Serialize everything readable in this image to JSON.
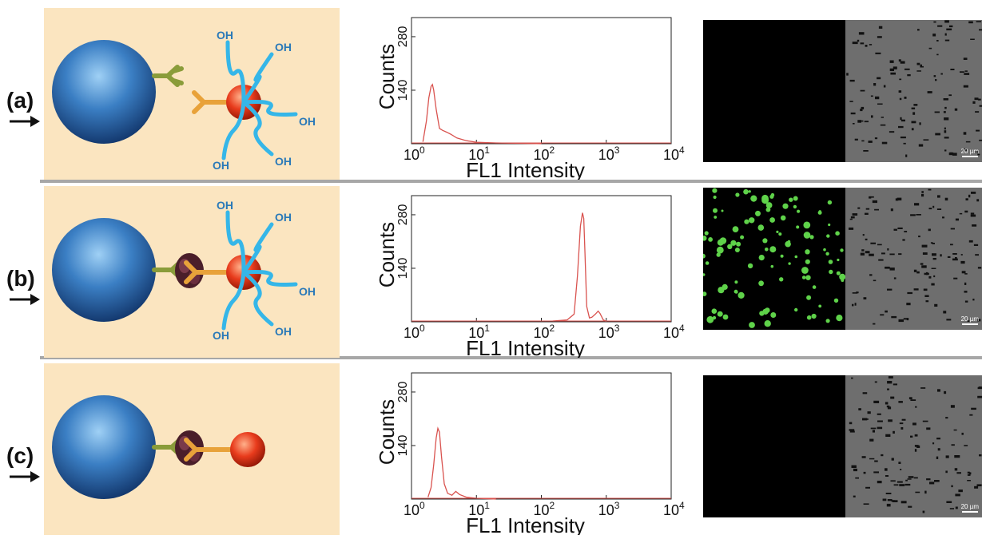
{
  "panels": [
    {
      "label": "(a)",
      "fluorescent": false,
      "complex": false,
      "peg": true
    },
    {
      "label": "(b)",
      "fluorescent": true,
      "complex": true,
      "peg": true
    },
    {
      "label": "(c)",
      "fluorescent": false,
      "complex": true,
      "peg": false
    }
  ],
  "oh_label": "OH",
  "scale_bar": "20 µm",
  "chart_data": [
    {
      "type": "line",
      "panel": "(a)",
      "xlabel": "FL1 Intensity",
      "ylabel": "Counts",
      "xscale": "log",
      "xlim": [
        1,
        10000
      ],
      "ylim": [
        0,
        330
      ],
      "x_ticks": [
        "10^0",
        "10^1",
        "10^2",
        "10^3",
        "10^4"
      ],
      "y_ticks": [
        140,
        280
      ],
      "series": [
        {
          "color": "#d9534f",
          "x": [
            1.5,
            1.7,
            1.85,
            2.0,
            2.1,
            2.2,
            2.4,
            2.7,
            3.0,
            3.5,
            4.0,
            5,
            7,
            10,
            20,
            50,
            100
          ],
          "y": [
            5,
            60,
            120,
            150,
            155,
            140,
            90,
            40,
            35,
            30,
            25,
            15,
            8,
            4,
            2,
            1,
            0
          ]
        }
      ]
    },
    {
      "type": "line",
      "panel": "(b)",
      "xlabel": "FL1 Intensity",
      "ylabel": "Counts",
      "xscale": "log",
      "xlim": [
        1,
        10000
      ],
      "ylim": [
        0,
        330
      ],
      "x_ticks": [
        "10^0",
        "10^1",
        "10^2",
        "10^3",
        "10^4"
      ],
      "y_ticks": [
        140,
        280
      ],
      "series": [
        {
          "color": "#d9534f",
          "x": [
            150,
            250,
            320,
            360,
            400,
            430,
            450,
            470,
            500,
            550,
            600,
            680,
            750,
            800,
            900,
            1000
          ],
          "y": [
            2,
            5,
            20,
            120,
            250,
            285,
            270,
            180,
            40,
            10,
            12,
            20,
            28,
            22,
            5,
            1
          ]
        }
      ]
    },
    {
      "type": "line",
      "panel": "(c)",
      "xlabel": "FL1 Intensity",
      "ylabel": "Counts",
      "xscale": "log",
      "xlim": [
        1,
        10000
      ],
      "ylim": [
        0,
        330
      ],
      "x_ticks": [
        "10^0",
        "10^1",
        "10^2",
        "10^3",
        "10^4"
      ],
      "y_ticks": [
        140,
        280
      ],
      "series": [
        {
          "color": "#d9534f",
          "x": [
            1.8,
            2.0,
            2.2,
            2.4,
            2.55,
            2.7,
            2.9,
            3.2,
            3.6,
            4.2,
            4.8,
            5.5,
            7,
            10,
            20
          ],
          "y": [
            5,
            30,
            90,
            160,
            185,
            175,
            110,
            40,
            15,
            10,
            20,
            12,
            5,
            2,
            0
          ]
        }
      ]
    }
  ]
}
